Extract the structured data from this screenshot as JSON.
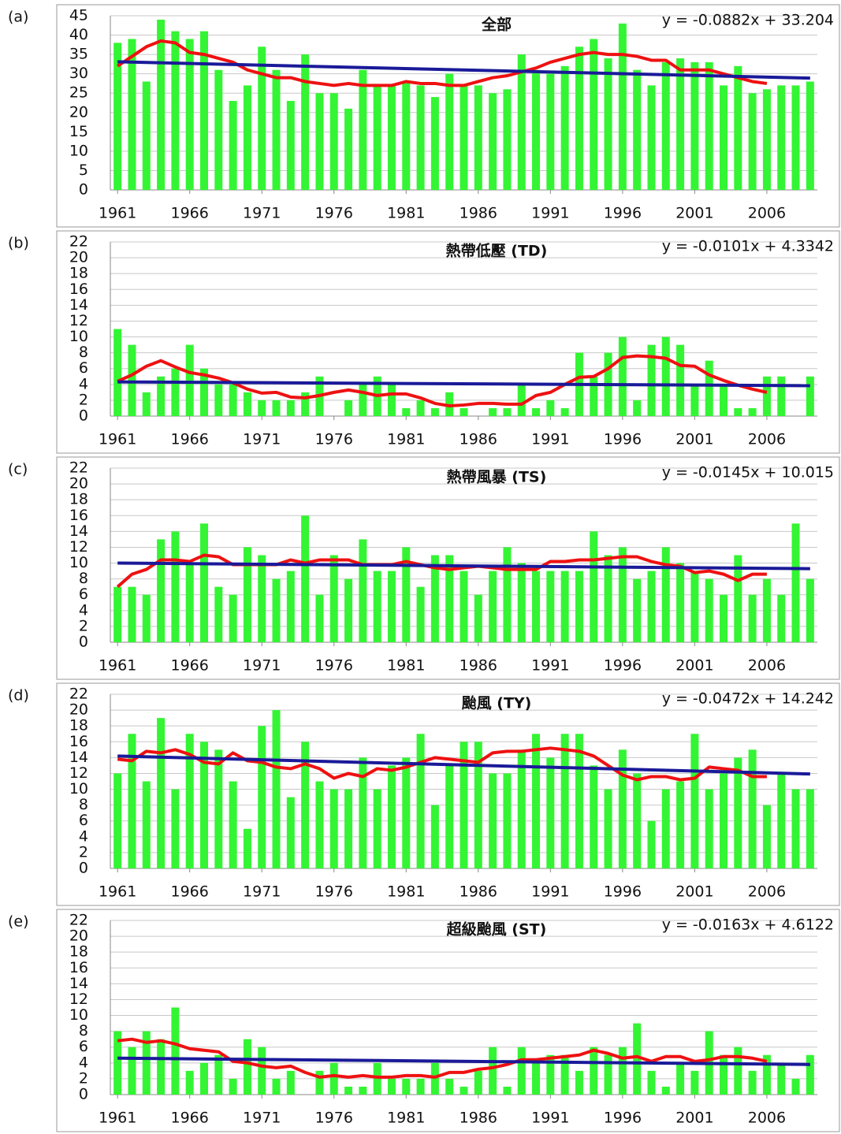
{
  "chart_data": [
    {
      "type": "bar",
      "panel_label": "(a)",
      "title": "全部",
      "annotation": "y = -0.0882x + 33.204",
      "x": [
        1961,
        1962,
        1963,
        1964,
        1965,
        1966,
        1967,
        1968,
        1969,
        1970,
        1971,
        1972,
        1973,
        1974,
        1975,
        1976,
        1977,
        1978,
        1979,
        1980,
        1981,
        1982,
        1983,
        1984,
        1985,
        1986,
        1987,
        1988,
        1989,
        1990,
        1991,
        1992,
        1993,
        1994,
        1995,
        1996,
        1997,
        1998,
        1999,
        2000,
        2001,
        2002,
        2003,
        2004,
        2005,
        2006,
        2007,
        2008,
        2009
      ],
      "xlim": [
        1960.5,
        2009.5
      ],
      "xticks": [
        1961,
        1966,
        1971,
        1976,
        1981,
        1986,
        1991,
        1996,
        2001,
        2006
      ],
      "ylim": [
        0,
        45
      ],
      "yticks": [
        0,
        5,
        10,
        15,
        20,
        25,
        30,
        35,
        40,
        45
      ],
      "grid": true,
      "series": [
        {
          "type": "bar",
          "color": "#33f533",
          "values": [
            38,
            39,
            28,
            44,
            41,
            39,
            41,
            31,
            23,
            27,
            37,
            31,
            23,
            35,
            25,
            25,
            21,
            31,
            27,
            27,
            28,
            27,
            24,
            30,
            27,
            27,
            25,
            26,
            35,
            31,
            30,
            32,
            37,
            39,
            34,
            43,
            31,
            27,
            33,
            34,
            33,
            33,
            27,
            32,
            25,
            26,
            27,
            27,
            28
          ]
        },
        {
          "type": "line",
          "color": "#ee1111",
          "values": [
            32,
            34.5,
            37,
            38.5,
            38,
            35.5,
            35,
            34,
            33,
            31,
            30,
            29,
            29,
            28,
            27.5,
            27,
            27.5,
            27,
            27,
            27,
            28,
            27.5,
            27.5,
            27,
            27,
            28,
            29,
            29.5,
            30.5,
            31.5,
            33,
            34,
            35,
            35.5,
            35,
            35,
            34.5,
            33.5,
            33.5,
            31,
            31,
            31,
            30,
            29,
            28,
            27.5,
            null,
            null,
            null
          ]
        },
        {
          "type": "line",
          "color": "#1a1a99",
          "x": [
            1961,
            2009
          ],
          "values": [
            33.12,
            28.88
          ]
        }
      ]
    },
    {
      "type": "bar",
      "panel_label": "(b)",
      "title": "熱帶低壓 (TD)",
      "annotation": "y = -0.0101x + 4.3342",
      "x": [
        1961,
        1962,
        1963,
        1964,
        1965,
        1966,
        1967,
        1968,
        1969,
        1970,
        1971,
        1972,
        1973,
        1974,
        1975,
        1976,
        1977,
        1978,
        1979,
        1980,
        1981,
        1982,
        1983,
        1984,
        1985,
        1986,
        1987,
        1988,
        1989,
        1990,
        1991,
        1992,
        1993,
        1994,
        1995,
        1996,
        1997,
        1998,
        1999,
        2000,
        2001,
        2002,
        2003,
        2004,
        2005,
        2006,
        2007,
        2008,
        2009
      ],
      "xlim": [
        1960.5,
        2009.5
      ],
      "xticks": [
        1961,
        1966,
        1971,
        1976,
        1981,
        1986,
        1991,
        1996,
        2001,
        2006
      ],
      "ylim": [
        0,
        22
      ],
      "yticks": [
        0,
        2,
        4,
        6,
        8,
        10,
        12,
        14,
        16,
        18,
        20,
        22
      ],
      "grid": true,
      "series": [
        {
          "type": "bar",
          "color": "#33f533",
          "values": [
            11,
            9,
            3,
            5,
            6,
            9,
            6,
            4,
            4,
            3,
            2,
            2,
            2,
            3,
            5,
            0,
            2,
            4,
            5,
            4,
            1,
            2,
            1,
            3,
            1,
            0,
            1,
            1,
            4,
            1,
            2,
            1,
            8,
            5,
            8,
            10,
            2,
            9,
            10,
            9,
            4,
            7,
            4,
            1,
            1,
            5,
            5,
            0,
            5
          ]
        },
        {
          "type": "line",
          "color": "#ee1111",
          "values": [
            4.4,
            5.2,
            6.3,
            7,
            6.2,
            5.5,
            5.2,
            4.8,
            4.2,
            3.4,
            2.9,
            3,
            2.4,
            2.3,
            2.6,
            3,
            3.3,
            3,
            2.6,
            2.8,
            2.8,
            2.3,
            1.6,
            1.3,
            1.4,
            1.6,
            1.6,
            1.5,
            1.5,
            2.6,
            3,
            4,
            4.9,
            5,
            6,
            7.4,
            7.6,
            7.5,
            7.3,
            6.4,
            6.3,
            5.2,
            4.5,
            3.9,
            3.4,
            3,
            null,
            null,
            null
          ]
        },
        {
          "type": "line",
          "color": "#1a1a99",
          "x": [
            1961,
            2009
          ],
          "values": [
            4.32,
            3.84
          ]
        }
      ]
    },
    {
      "type": "bar",
      "panel_label": "(c)",
      "title": "熱帶風暴 (TS)",
      "annotation": "y = -0.0145x + 10.015",
      "x": [
        1961,
        1962,
        1963,
        1964,
        1965,
        1966,
        1967,
        1968,
        1969,
        1970,
        1971,
        1972,
        1973,
        1974,
        1975,
        1976,
        1977,
        1978,
        1979,
        1980,
        1981,
        1982,
        1983,
        1984,
        1985,
        1986,
        1987,
        1988,
        1989,
        1990,
        1991,
        1992,
        1993,
        1994,
        1995,
        1996,
        1997,
        1998,
        1999,
        2000,
        2001,
        2002,
        2003,
        2004,
        2005,
        2006,
        2007,
        2008,
        2009
      ],
      "xlim": [
        1960.5,
        2009.5
      ],
      "xticks": [
        1961,
        1966,
        1971,
        1976,
        1981,
        1986,
        1991,
        1996,
        2001,
        2006
      ],
      "ylim": [
        0,
        22
      ],
      "yticks": [
        0,
        2,
        4,
        6,
        8,
        10,
        12,
        14,
        16,
        18,
        20,
        22
      ],
      "grid": true,
      "series": [
        {
          "type": "bar",
          "color": "#33f533",
          "values": [
            7,
            7,
            6,
            13,
            14,
            10,
            15,
            7,
            6,
            12,
            11,
            8,
            9,
            16,
            6,
            11,
            8,
            13,
            9,
            9,
            12,
            7,
            11,
            11,
            9,
            6,
            9,
            12,
            10,
            9,
            9,
            9,
            9,
            14,
            11,
            12,
            8,
            9,
            12,
            10,
            9,
            8,
            6,
            11,
            6,
            8,
            6,
            15,
            8
          ]
        },
        {
          "type": "line",
          "color": "#ee1111",
          "values": [
            7,
            8.6,
            9.2,
            10.4,
            10.4,
            10.2,
            11,
            10.8,
            9.8,
            9.8,
            9.8,
            9.8,
            10.4,
            10,
            10.4,
            10.4,
            10.4,
            9.8,
            9.8,
            9.8,
            10.2,
            9.8,
            9.4,
            9.2,
            9.4,
            9.6,
            9.4,
            9.2,
            9.2,
            9.2,
            10.2,
            10.2,
            10.4,
            10.4,
            10.6,
            10.8,
            10.8,
            10.2,
            9.8,
            9.6,
            8.8,
            9,
            8.6,
            7.8,
            8.6,
            8.6,
            null,
            null,
            null
          ]
        },
        {
          "type": "line",
          "color": "#1a1a99",
          "x": [
            1961,
            2009
          ],
          "values": [
            10.0,
            9.3
          ]
        }
      ]
    },
    {
      "type": "bar",
      "panel_label": "(d)",
      "title": "颱風 (TY)",
      "annotation": "y = -0.0472x + 14.242",
      "x": [
        1961,
        1962,
        1963,
        1964,
        1965,
        1966,
        1967,
        1968,
        1969,
        1970,
        1971,
        1972,
        1973,
        1974,
        1975,
        1976,
        1977,
        1978,
        1979,
        1980,
        1981,
        1982,
        1983,
        1984,
        1985,
        1986,
        1987,
        1988,
        1989,
        1990,
        1991,
        1992,
        1993,
        1994,
        1995,
        1996,
        1997,
        1998,
        1999,
        2000,
        2001,
        2002,
        2003,
        2004,
        2005,
        2006,
        2007,
        2008,
        2009
      ],
      "xlim": [
        1960.5,
        2009.5
      ],
      "xticks": [
        1961,
        1966,
        1971,
        1976,
        1981,
        1986,
        1991,
        1996,
        2001,
        2006
      ],
      "ylim": [
        0,
        22
      ],
      "yticks": [
        0,
        2,
        4,
        6,
        8,
        10,
        12,
        14,
        16,
        18,
        20,
        22
      ],
      "grid": true,
      "series": [
        {
          "type": "bar",
          "color": "#33f533",
          "values": [
            12,
            17,
            11,
            19,
            10,
            17,
            16,
            15,
            11,
            5,
            18,
            20,
            9,
            16,
            11,
            10,
            10,
            14,
            10,
            13,
            14,
            17,
            8,
            13,
            16,
            16,
            12,
            12,
            15,
            17,
            14,
            17,
            17,
            13,
            10,
            15,
            12,
            6,
            10,
            11,
            17,
            10,
            12,
            14,
            15,
            8,
            12,
            10,
            10
          ]
        },
        {
          "type": "line",
          "color": "#ee1111",
          "values": [
            13.8,
            13.6,
            14.8,
            14.6,
            15,
            14.4,
            13.4,
            13.2,
            14.6,
            13.6,
            13.4,
            12.8,
            12.6,
            13.2,
            12.6,
            11.4,
            12,
            11.6,
            12.6,
            12.4,
            12.8,
            13.4,
            14,
            13.8,
            13.6,
            13.4,
            14.6,
            14.8,
            14.8,
            15,
            15.2,
            15,
            14.8,
            14.2,
            13,
            11.8,
            11.2,
            11.6,
            11.6,
            11.2,
            11.4,
            12.8,
            12.6,
            12.4,
            11.6,
            11.6,
            null,
            null,
            null
          ]
        },
        {
          "type": "line",
          "color": "#1a1a99",
          "x": [
            1961,
            2009
          ],
          "values": [
            14.2,
            11.93
          ]
        }
      ]
    },
    {
      "type": "bar",
      "panel_label": "(e)",
      "title": "超級颱風 (ST)",
      "annotation": "y = -0.0163x + 4.6122",
      "x": [
        1961,
        1962,
        1963,
        1964,
        1965,
        1966,
        1967,
        1968,
        1969,
        1970,
        1971,
        1972,
        1973,
        1974,
        1975,
        1976,
        1977,
        1978,
        1979,
        1980,
        1981,
        1982,
        1983,
        1984,
        1985,
        1986,
        1987,
        1988,
        1989,
        1990,
        1991,
        1992,
        1993,
        1994,
        1995,
        1996,
        1997,
        1998,
        1999,
        2000,
        2001,
        2002,
        2003,
        2004,
        2005,
        2006,
        2007,
        2008,
        2009
      ],
      "xlim": [
        1960.5,
        2009.5
      ],
      "xticks": [
        1961,
        1966,
        1971,
        1976,
        1981,
        1986,
        1991,
        1996,
        2001,
        2006
      ],
      "ylim": [
        0,
        22
      ],
      "yticks": [
        0,
        2,
        4,
        6,
        8,
        10,
        12,
        14,
        16,
        18,
        20,
        22
      ],
      "grid": true,
      "series": [
        {
          "type": "bar",
          "color": "#33f533",
          "values": [
            8,
            6,
            8,
            7,
            11,
            3,
            4,
            5,
            2,
            7,
            6,
            2,
            3,
            0,
            3,
            4,
            1,
            1,
            4,
            2,
            2,
            2,
            4,
            2,
            1,
            3,
            6,
            1,
            6,
            4,
            5,
            5,
            3,
            6,
            5,
            6,
            9,
            3,
            1,
            4,
            3,
            8,
            5,
            6,
            3,
            5,
            4,
            2,
            5
          ]
        },
        {
          "type": "line",
          "color": "#ee1111",
          "values": [
            6.8,
            7,
            6.6,
            6.8,
            6.4,
            5.8,
            5.6,
            5.4,
            4.2,
            4,
            3.6,
            3.4,
            3.6,
            2.8,
            2.2,
            2.4,
            2.2,
            2.4,
            2.2,
            2.2,
            2.4,
            2.4,
            2.2,
            2.8,
            2.8,
            3.2,
            3.4,
            3.8,
            4.4,
            4.4,
            4.6,
            4.8,
            5,
            5.6,
            5.2,
            4.6,
            4.8,
            4.2,
            4.8,
            4.8,
            4.2,
            4.4,
            4.8,
            4.8,
            4.6,
            4.2,
            null,
            null,
            null
          ]
        },
        {
          "type": "line",
          "color": "#1a1a99",
          "x": [
            1961,
            2009
          ],
          "values": [
            4.6,
            3.81
          ]
        }
      ]
    }
  ]
}
